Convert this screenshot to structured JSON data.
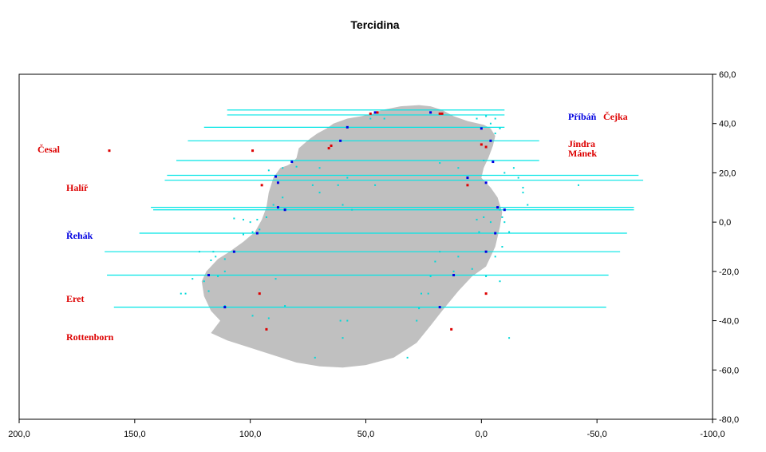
{
  "chart_data": {
    "type": "scatter",
    "title": "Tercidina",
    "xlim": [
      200,
      -100
    ],
    "ylim": [
      -80,
      60
    ],
    "x_ticks": [
      "200,0",
      "150,0",
      "100,0",
      "50,0",
      "0,0",
      "-50,0",
      "-100,0"
    ],
    "y_ticks": [
      "60,0",
      "40,0",
      "20,0",
      "0,0",
      "-20,0",
      "-40,0",
      "-60,0",
      "-80,0"
    ],
    "y_axis_side": "right",
    "grid": false,
    "colors": {
      "shape": "#c0c0c0",
      "lines": "#00e5e5",
      "points_cyan": "#00d8d8",
      "blue": "#0000e0",
      "red": "#dd0000"
    },
    "shape_outline": [
      [
        27,
        47.5
      ],
      [
        35,
        47
      ],
      [
        43,
        45.5
      ],
      [
        47,
        44
      ],
      [
        52,
        43
      ],
      [
        58,
        42
      ],
      [
        64,
        40
      ],
      [
        67,
        38
      ],
      [
        71,
        36
      ],
      [
        74,
        34
      ],
      [
        79,
        30
      ],
      [
        80,
        26
      ],
      [
        82,
        24
      ],
      [
        84,
        23
      ],
      [
        87,
        22
      ],
      [
        90,
        18
      ],
      [
        92,
        12
      ],
      [
        93,
        6
      ],
      [
        95,
        1
      ],
      [
        98,
        -4
      ],
      [
        103,
        -8
      ],
      [
        109,
        -12
      ],
      [
        114,
        -15
      ],
      [
        119,
        -20
      ],
      [
        121,
        -24
      ],
      [
        120,
        -30
      ],
      [
        117,
        -36
      ],
      [
        113,
        -40
      ],
      [
        117,
        -45
      ],
      [
        110,
        -48
      ],
      [
        100,
        -51
      ],
      [
        90,
        -54
      ],
      [
        80,
        -57
      ],
      [
        70,
        -58.5
      ],
      [
        60,
        -59
      ],
      [
        50,
        -58
      ],
      [
        38,
        -55
      ],
      [
        28,
        -49
      ],
      [
        22,
        -42
      ],
      [
        17,
        -36
      ],
      [
        10,
        -28
      ],
      [
        4,
        -22
      ],
      [
        -2,
        -18
      ],
      [
        -6,
        -10
      ],
      [
        -8,
        -2
      ],
      [
        -9,
        4
      ],
      [
        -7,
        10
      ],
      [
        -4,
        14
      ],
      [
        -2,
        16
      ],
      [
        0,
        18
      ],
      [
        -1,
        22
      ],
      [
        -3,
        26
      ],
      [
        -5,
        31
      ],
      [
        -6,
        35
      ],
      [
        -4,
        38
      ],
      [
        -1,
        39.5
      ],
      [
        6,
        41
      ],
      [
        12,
        43
      ],
      [
        17,
        45.5
      ],
      [
        22,
        47
      ]
    ],
    "horizontal_lines": [
      [
        110,
        -10,
        45.5
      ],
      [
        110,
        -10,
        43.5
      ],
      [
        120,
        -10,
        38.5
      ],
      [
        127,
        -25,
        33
      ],
      [
        132,
        -25,
        25
      ],
      [
        136,
        -68,
        19
      ],
      [
        137,
        -70,
        17
      ],
      [
        143,
        -66,
        6
      ],
      [
        142,
        -66,
        5
      ],
      [
        148,
        -63,
        -4.5
      ],
      [
        163,
        -60,
        -12
      ],
      [
        162,
        -55,
        -21.5
      ],
      [
        159,
        -54,
        -34.5
      ]
    ],
    "points_blue": [
      [
        46,
        44.5
      ],
      [
        22,
        44.5
      ],
      [
        58,
        38.5
      ],
      [
        0,
        38
      ],
      [
        61,
        33
      ],
      [
        -4,
        33
      ],
      [
        82,
        24.5
      ],
      [
        -5,
        24.5
      ],
      [
        89,
        18.5
      ],
      [
        6,
        18
      ],
      [
        88,
        16
      ],
      [
        -2,
        16
      ],
      [
        88,
        6
      ],
      [
        -7,
        6
      ],
      [
        85,
        5
      ],
      [
        -10,
        5
      ],
      [
        97,
        -4.5
      ],
      [
        -6,
        -4.5
      ],
      [
        107,
        -12
      ],
      [
        -2,
        -12
      ],
      [
        118,
        -21.5
      ],
      [
        12,
        -21.5
      ],
      [
        111,
        -34.5
      ],
      [
        18,
        -34.5
      ]
    ],
    "points_red": [
      [
        161,
        29
      ],
      [
        99,
        29
      ],
      [
        65,
        31
      ],
      [
        66,
        30
      ],
      [
        0,
        31.5
      ],
      [
        -2,
        30.5
      ],
      [
        48,
        44
      ],
      [
        45,
        44.5
      ],
      [
        18,
        44
      ],
      [
        17,
        44
      ],
      [
        95,
        15
      ],
      [
        6,
        15
      ],
      [
        96,
        -29
      ],
      [
        -2,
        -29
      ],
      [
        93,
        -43.5
      ],
      [
        13,
        -43.5
      ]
    ],
    "points_cyan": [
      [
        92,
        21
      ],
      [
        86,
        22
      ],
      [
        80,
        22.5
      ],
      [
        73,
        15
      ],
      [
        70,
        22
      ],
      [
        62,
        15
      ],
      [
        58,
        18
      ],
      [
        46,
        15
      ],
      [
        18,
        24
      ],
      [
        10,
        22
      ],
      [
        -1,
        25
      ],
      [
        -10,
        20
      ],
      [
        -14,
        22
      ],
      [
        -16,
        18
      ],
      [
        -18,
        12
      ],
      [
        -20,
        7
      ],
      [
        -42,
        15
      ],
      [
        -6,
        42
      ],
      [
        -4,
        40
      ],
      [
        -2,
        43
      ],
      [
        2,
        42
      ],
      [
        70,
        12
      ],
      [
        60,
        7
      ],
      [
        90,
        7
      ],
      [
        93,
        2
      ],
      [
        97,
        1
      ],
      [
        100,
        0
      ],
      [
        103,
        1
      ],
      [
        107,
        1.5
      ],
      [
        96,
        -3
      ],
      [
        99,
        -4
      ],
      [
        103,
        -5
      ],
      [
        122,
        -12
      ],
      [
        116,
        -12
      ],
      [
        115,
        -14
      ],
      [
        117,
        -15.5
      ],
      [
        111,
        -15
      ],
      [
        111,
        -20
      ],
      [
        114,
        -22
      ],
      [
        120,
        -24
      ],
      [
        125,
        -23
      ],
      [
        128,
        -29
      ],
      [
        130,
        -29
      ],
      [
        118,
        -28
      ],
      [
        111,
        -34
      ],
      [
        99,
        -38
      ],
      [
        92,
        -39
      ],
      [
        85,
        -34
      ],
      [
        89,
        -23
      ],
      [
        58,
        -40
      ],
      [
        61,
        -40
      ],
      [
        60,
        -47
      ],
      [
        72,
        -55
      ],
      [
        32,
        -55
      ],
      [
        28,
        -40
      ],
      [
        27,
        -35
      ],
      [
        26,
        -29
      ],
      [
        23,
        -29
      ],
      [
        22,
        -22
      ],
      [
        20,
        -16
      ],
      [
        18,
        -12
      ],
      [
        10,
        -14
      ],
      [
        12,
        -20
      ],
      [
        4,
        -19
      ],
      [
        -2,
        -22
      ],
      [
        -6,
        -14
      ],
      [
        -9,
        -10
      ],
      [
        -12,
        -4
      ],
      [
        -10,
        0
      ],
      [
        -9,
        2
      ],
      [
        -8,
        5
      ],
      [
        -4,
        0
      ],
      [
        -1,
        2
      ],
      [
        2,
        1
      ],
      [
        1,
        -4
      ],
      [
        -8,
        -24
      ],
      [
        -12,
        -47
      ],
      [
        -18,
        14
      ],
      [
        48,
        42
      ],
      [
        42,
        42
      ],
      [
        86,
        10
      ],
      [
        56,
        5
      ],
      [
        -6,
        36
      ],
      [
        -8,
        38
      ]
    ],
    "names": [
      {
        "text": "Příbáň",
        "color": "#0000e0"
      },
      {
        "text": "Čejka",
        "color": "#dd0000"
      },
      {
        "text": "Jindra",
        "color": "#dd0000"
      },
      {
        "text": "Mánek",
        "color": "#dd0000"
      },
      {
        "text": "Česal",
        "color": "#dd0000"
      },
      {
        "text": "Halíř",
        "color": "#dd0000"
      },
      {
        "text": "Řehák",
        "color": "#0000e0"
      },
      {
        "text": "Eret",
        "color": "#dd0000"
      },
      {
        "text": "Rottenborn",
        "color": "#dd0000"
      }
    ]
  }
}
